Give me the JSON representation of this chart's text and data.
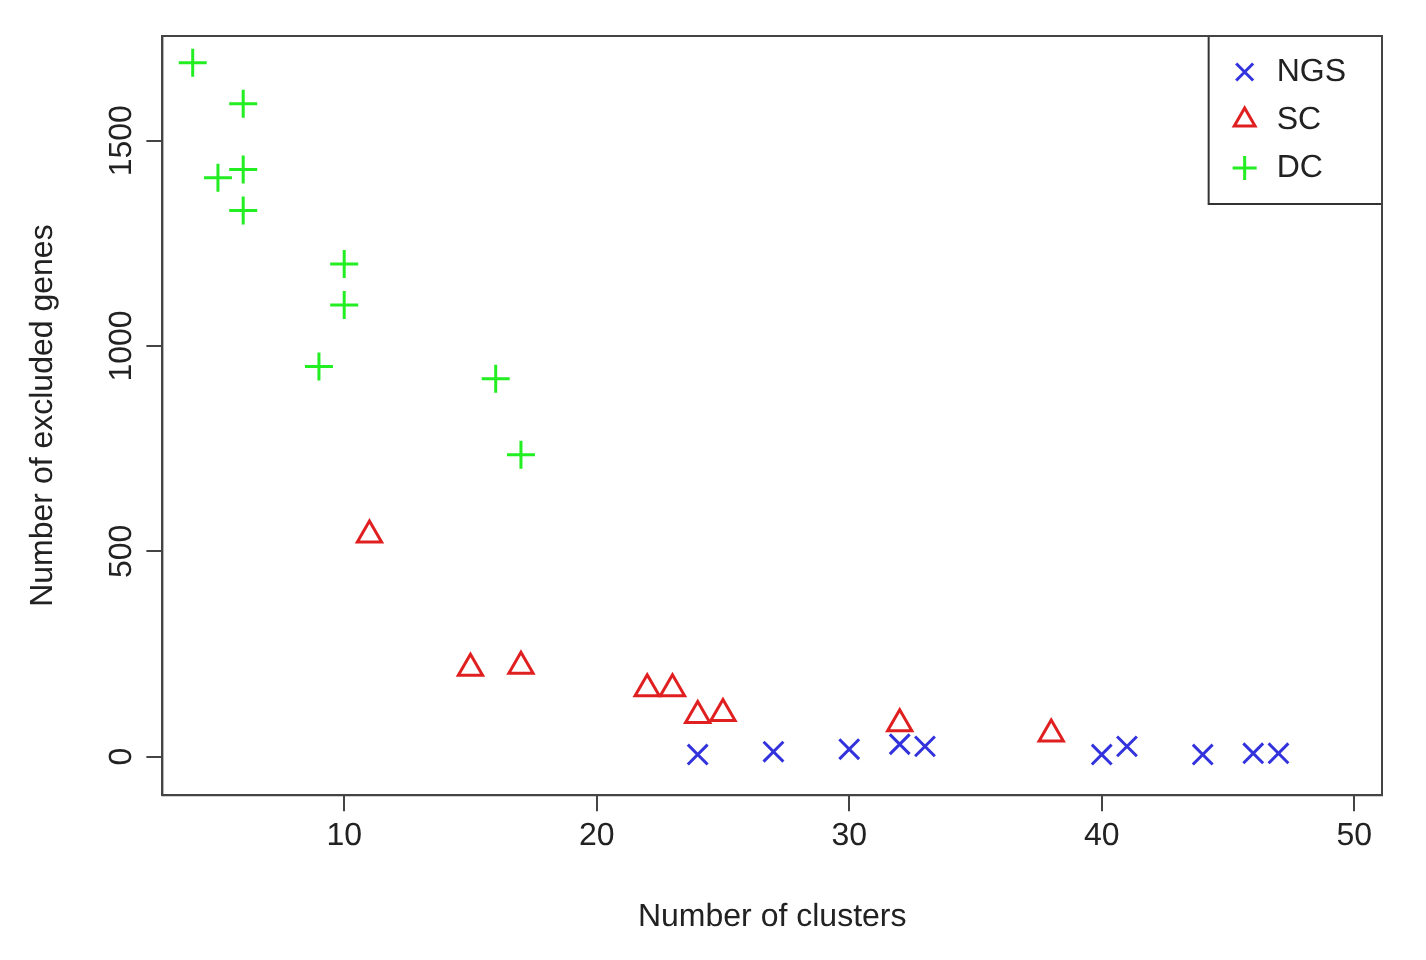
{
  "chart_data": {
    "type": "scatter",
    "xlabel": "Number of clusters",
    "ylabel": "Number of excluded genes",
    "xlim": [
      2.8,
      51.1
    ],
    "xticks": [
      10,
      20,
      30,
      40,
      50
    ],
    "ylim": [
      -94,
      1755
    ],
    "yticks": [
      0,
      500,
      1000,
      1500
    ],
    "grid": false,
    "legend": "top right",
    "series": [
      {
        "name": "NGS",
        "color": "#3333dd",
        "marker": "cross",
        "x": [
          24,
          27,
          30,
          32,
          33,
          40,
          41,
          44,
          46,
          47
        ],
        "values": [
          5,
          12,
          18,
          30,
          25,
          5,
          25,
          5,
          8,
          8
        ]
      },
      {
        "name": "SC",
        "color": "#e02020",
        "marker": "triangle",
        "x": [
          11,
          15,
          17,
          22,
          23,
          24,
          25,
          32,
          38
        ],
        "values": [
          540,
          215,
          220,
          165,
          165,
          100,
          105,
          80,
          55
        ]
      },
      {
        "name": "DC",
        "color": "#22ee22",
        "marker": "plus",
        "x": [
          4,
          6,
          5,
          6,
          6,
          10,
          10,
          9,
          16,
          17
        ],
        "values": [
          1690,
          1590,
          1410,
          1430,
          1330,
          1200,
          1100,
          950,
          920,
          735
        ]
      }
    ]
  }
}
